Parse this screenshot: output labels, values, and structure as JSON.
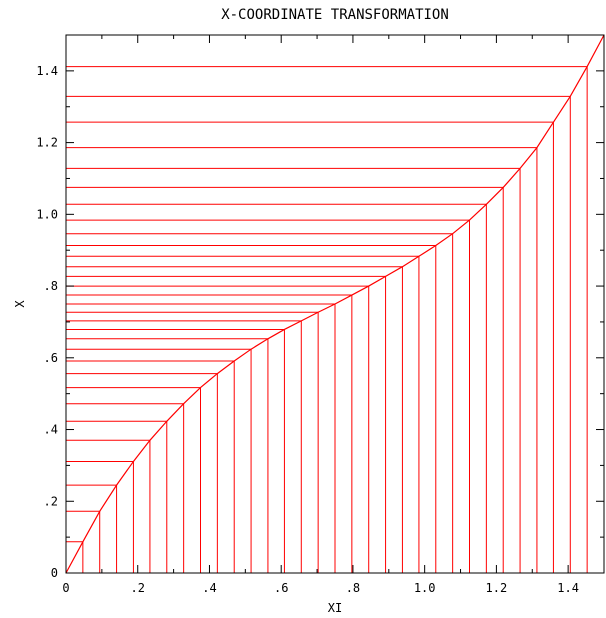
{
  "chart_data": {
    "type": "line",
    "title": "X-COORDINATE TRANSFORMATION",
    "xlabel": "XI",
    "ylabel": "X",
    "xlim": [
      0,
      1.5
    ],
    "ylim": [
      0,
      1.5
    ],
    "grid": false,
    "legend": "none",
    "x_ticks": [
      {
        "value": 0,
        "label": "0"
      },
      {
        "value": 0.2,
        "label": ".2"
      },
      {
        "value": 0.4,
        "label": ".4"
      },
      {
        "value": 0.6,
        "label": ".6"
      },
      {
        "value": 0.8,
        "label": ".8"
      },
      {
        "value": 1.0,
        "label": "1.0"
      },
      {
        "value": 1.2,
        "label": "1.2"
      },
      {
        "value": 1.4,
        "label": "1.4"
      }
    ],
    "y_ticks": [
      {
        "value": 0,
        "label": "0"
      },
      {
        "value": 0.2,
        "label": ".2"
      },
      {
        "value": 0.4,
        "label": ".4"
      },
      {
        "value": 0.6,
        "label": ".6"
      },
      {
        "value": 0.8,
        "label": ".8"
      },
      {
        "value": 1.0,
        "label": "1.0"
      },
      {
        "value": 1.2,
        "label": "1.2"
      },
      {
        "value": 1.4,
        "label": "1.4"
      }
    ],
    "x_minor_step": 0.1,
    "y_minor_step": 0.1,
    "series": [
      {
        "color": "#ff0000",
        "x": [
          0,
          0.047,
          0.094,
          0.141,
          0.188,
          0.234,
          0.281,
          0.328,
          0.375,
          0.422,
          0.469,
          0.516,
          0.563,
          0.609,
          0.656,
          0.703,
          0.75,
          0.797,
          0.844,
          0.891,
          0.938,
          0.984,
          1.031,
          1.078,
          1.125,
          1.172,
          1.219,
          1.266,
          1.313,
          1.359,
          1.406,
          1.453,
          1.5
        ],
        "y": [
          0,
          0.087,
          0.172,
          0.245,
          0.311,
          0.37,
          0.423,
          0.472,
          0.517,
          0.556,
          0.591,
          0.624,
          0.653,
          0.679,
          0.703,
          0.727,
          0.75,
          0.775,
          0.8,
          0.827,
          0.854,
          0.883,
          0.913,
          0.946,
          0.984,
          1.028,
          1.075,
          1.128,
          1.186,
          1.257,
          1.329,
          1.412,
          1.5
        ]
      }
    ]
  }
}
